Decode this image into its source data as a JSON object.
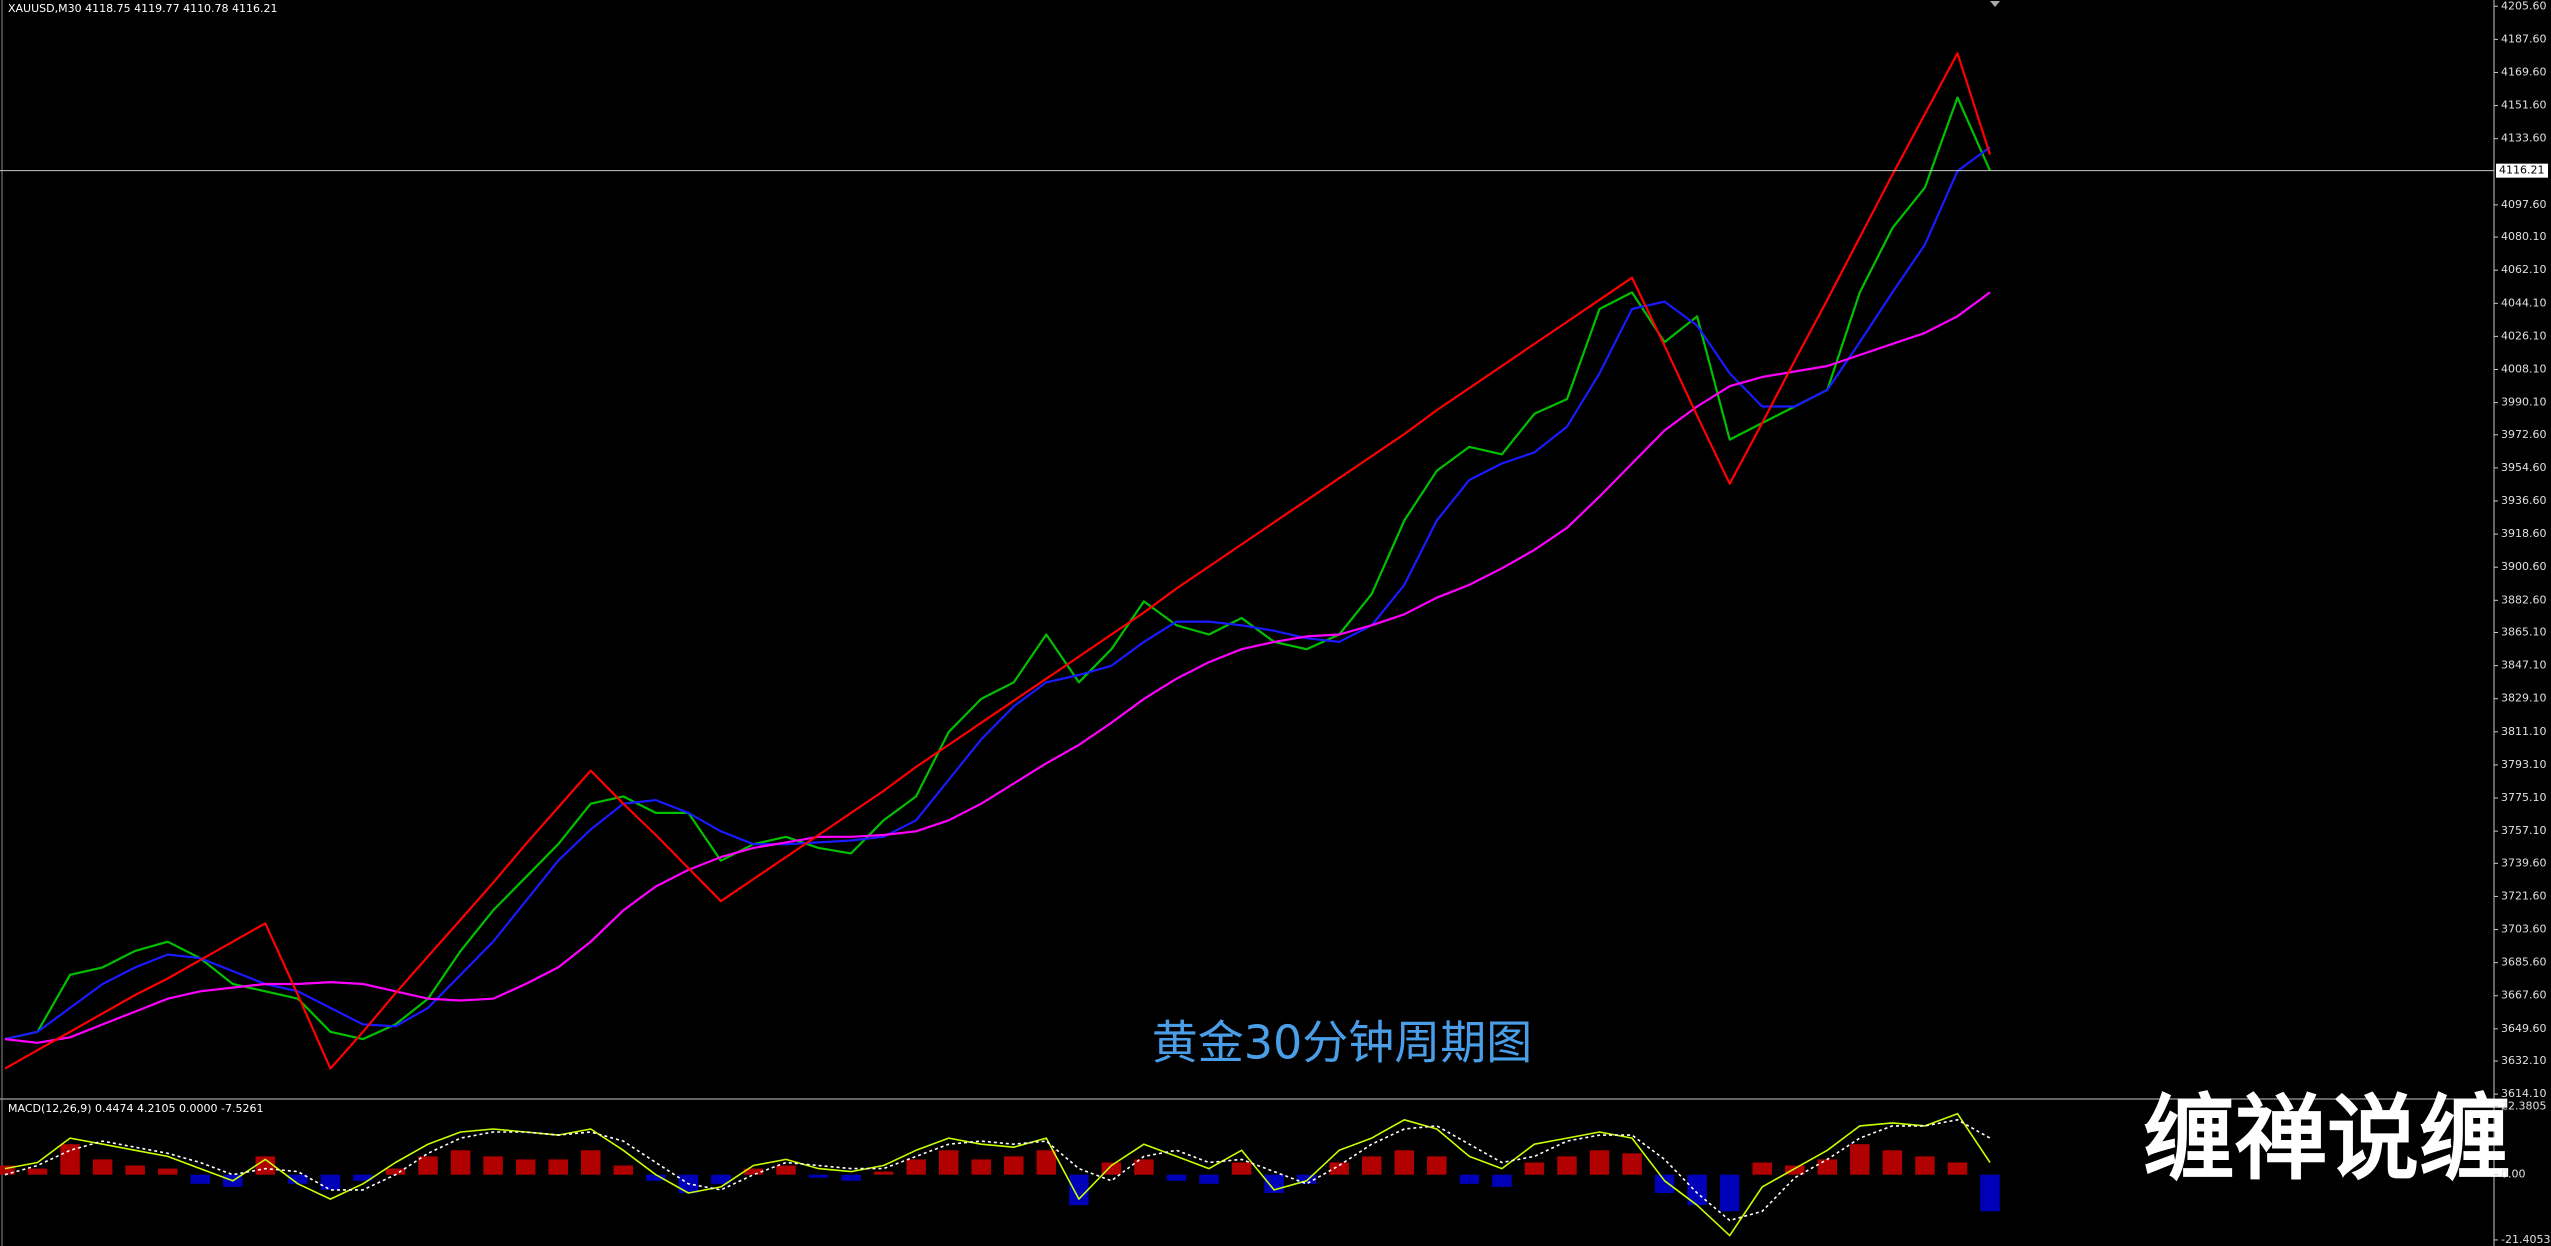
{
  "chart_data": [
    {
      "type": "line",
      "title": "XAUUSD,M30  4118.75 4119.77 4110.78 4116.21",
      "annotation": "黄金30分钟周期图",
      "watermark": "缠禅说缠",
      "last_price": 4116.21,
      "ylim": [
        3612,
        4209
      ],
      "yticks": [
        {
          "value": 4205.6,
          "label": "4205.60"
        },
        {
          "value": 4187.6,
          "label": "4187.60"
        },
        {
          "value": 4169.6,
          "label": "4169.60"
        },
        {
          "value": 4151.6,
          "label": "4151.60"
        },
        {
          "value": 4133.6,
          "label": "4133.60"
        },
        {
          "value": 4097.6,
          "label": "4097.60"
        },
        {
          "value": 4080.1,
          "label": "4080.10"
        },
        {
          "value": 4062.1,
          "label": "4062.10"
        },
        {
          "value": 4044.1,
          "label": "4044.10"
        },
        {
          "value": 4026.1,
          "label": "4026.10"
        },
        {
          "value": 4008.1,
          "label": "4008.10"
        },
        {
          "value": 3990.1,
          "label": "3990.10"
        },
        {
          "value": 3972.6,
          "label": "3972.60"
        },
        {
          "value": 3954.6,
          "label": "3954.60"
        },
        {
          "value": 3936.6,
          "label": "3936.60"
        },
        {
          "value": 3918.6,
          "label": "3918.60"
        },
        {
          "value": 3900.6,
          "label": "3900.60"
        },
        {
          "value": 3882.6,
          "label": "3882.60"
        },
        {
          "value": 3865.1,
          "label": "3865.10"
        },
        {
          "value": 3847.1,
          "label": "3847.10"
        },
        {
          "value": 3829.1,
          "label": "3829.10"
        },
        {
          "value": 3811.1,
          "label": "3811.10"
        },
        {
          "value": 3793.1,
          "label": "3793.10"
        },
        {
          "value": 3775.1,
          "label": "3775.10"
        },
        {
          "value": 3757.1,
          "label": "3757.10"
        },
        {
          "value": 3739.6,
          "label": "3739.60"
        },
        {
          "value": 3721.6,
          "label": "3721.60"
        },
        {
          "value": 3703.6,
          "label": "3703.60"
        },
        {
          "value": 3685.6,
          "label": "3685.60"
        },
        {
          "value": 3667.6,
          "label": "3667.60"
        },
        {
          "value": 3649.6,
          "label": "3649.60"
        },
        {
          "value": 3632.1,
          "label": "3632.10"
        },
        {
          "value": 3614.1,
          "label": "3614.10"
        }
      ],
      "series": [
        {
          "color": "#00c000",
          "values": [
            3644,
            3648,
            3679,
            3683,
            3692,
            3697,
            3688,
            3674,
            3670,
            3666,
            3648,
            3644,
            3652,
            3666,
            3692,
            3714,
            3732,
            3750,
            3772,
            3776,
            3767,
            3767,
            3741,
            3750,
            3754,
            3748,
            3745,
            3763,
            3776,
            3811,
            3829,
            3838,
            3864,
            3838,
            3856,
            3882,
            3869,
            3864,
            3873,
            3860,
            3856,
            3864,
            3886,
            3926,
            3953,
            3966,
            3962,
            3984,
            3992,
            4041,
            4050,
            4023,
            4037,
            3970,
            3979,
            3988,
            3997,
            4050,
            4085,
            4107,
            4156,
            4116.21
          ]
        },
        {
          "color": "#1a1aff",
          "values": [
            3644,
            3648,
            3661,
            3674,
            3683,
            3690,
            3688,
            3681,
            3674,
            3670,
            3661,
            3652,
            3651,
            3661,
            3679,
            3697,
            3719,
            3741,
            3758,
            3772,
            3774,
            3767,
            3757,
            3750,
            3750,
            3751,
            3752,
            3754,
            3763,
            3785,
            3807,
            3825,
            3838,
            3842,
            3847,
            3860,
            3871,
            3871,
            3869,
            3866,
            3862,
            3860,
            3869,
            3891,
            3926,
            3948,
            3957,
            3963,
            3977,
            4006,
            4041,
            4045,
            4032,
            4006,
            3988,
            3988,
            3997,
            4023,
            4050,
            4076,
            4116,
            4129
          ]
        },
        {
          "color": "#ff00ff",
          "values": [
            3644,
            3642,
            3645,
            3652,
            3659,
            3666,
            3670,
            3672,
            3674,
            3674,
            3675,
            3674,
            3670,
            3666,
            3665,
            3666,
            3674,
            3683,
            3697,
            3714,
            3727,
            3736,
            3743,
            3748,
            3751,
            3754,
            3754,
            3755,
            3757,
            3763,
            3772,
            3783,
            3794,
            3804,
            3816,
            3829,
            3840,
            3849,
            3856,
            3860,
            3863,
            3864,
            3869,
            3875,
            3884,
            3891,
            3900,
            3910,
            3922,
            3939,
            3957,
            3975,
            3988,
            3999,
            4004,
            4007,
            4010,
            4016,
            4022,
            4028,
            4037,
            4050
          ]
        },
        {
          "color": "#ff0000",
          "values": [
            3628,
            3638,
            3648,
            3658,
            3668,
            3677,
            3687,
            3697,
            3707,
            3668,
            3628,
            3648,
            3669,
            3689,
            3709,
            3729,
            3750,
            3770,
            3790,
            3772,
            3755,
            3737,
            3719,
            3731,
            3743,
            3755,
            3767,
            3779,
            3792,
            3804,
            3816,
            3828,
            3840,
            3852,
            3864,
            3876,
            3889,
            3901,
            3913,
            3925,
            3937,
            3949,
            3961,
            3973,
            3986,
            3998,
            4010,
            4022,
            4034,
            4046,
            4058,
            4021,
            3983,
            3946,
            3979,
            4013,
            4046,
            4080,
            4114,
            4147,
            4180,
            4125
          ]
        }
      ]
    },
    {
      "type": "bar",
      "title": "MACD(12,26,9) 0.4474 4.2105 0.0000 -7.5261",
      "ylim": [
        -23.4,
        24.5
      ],
      "yticks": [
        22.3805,
        {
          "value": 0,
          "label": "0.00"
        },
        -21.4053
      ],
      "colors": [
        "#b00000",
        "#0000b8"
      ],
      "values": [
        3,
        2,
        10,
        5,
        3,
        2,
        -3,
        -4,
        6,
        -3,
        -5,
        -2,
        2,
        6,
        8,
        6,
        5,
        5,
        8,
        3,
        -2,
        -6,
        -3,
        2,
        3,
        -1,
        -2,
        1,
        5,
        8,
        5,
        6,
        8,
        -10,
        4,
        5,
        -2,
        -3,
        4,
        -6,
        -3,
        4,
        6,
        8,
        6,
        -3,
        -4,
        4,
        6,
        8,
        7,
        -6,
        -10,
        -12,
        4,
        3,
        5,
        10,
        8,
        6,
        4,
        -12
      ],
      "series": [
        {
          "color": "#c8ff00",
          "values": [
            2,
            4,
            12,
            10,
            8,
            6,
            2,
            -2,
            5,
            -3,
            -8,
            -3,
            4,
            10,
            14,
            15,
            14,
            13,
            15,
            8,
            0,
            -6,
            -4,
            3,
            5,
            2,
            1,
            3,
            8,
            12,
            10,
            9,
            12,
            -8,
            3,
            10,
            6,
            2,
            8,
            -5,
            -2,
            8,
            12,
            18,
            15,
            6,
            2,
            10,
            12,
            14,
            12,
            -2,
            -10,
            -20,
            -4,
            2,
            8,
            16,
            17,
            16,
            20,
            4
          ]
        },
        {
          "color": "#ffffff",
          "dash": true,
          "values": [
            0,
            3,
            8,
            11,
            9,
            7,
            4,
            0,
            2,
            1,
            -5,
            -5,
            0,
            7,
            12,
            14,
            14,
            13,
            14,
            11,
            4,
            -3,
            -5,
            0,
            4,
            3,
            2,
            2,
            6,
            10,
            11,
            10,
            11,
            2,
            -2,
            6,
            8,
            4,
            5,
            1,
            -3,
            3,
            10,
            15,
            16,
            10,
            4,
            6,
            11,
            13,
            13,
            5,
            -6,
            -15,
            -12,
            -1,
            5,
            12,
            16,
            16,
            18,
            12
          ]
        }
      ]
    }
  ]
}
